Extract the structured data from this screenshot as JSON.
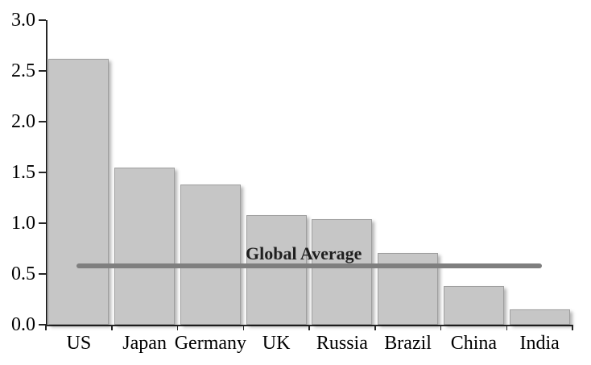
{
  "chart_data": {
    "type": "bar",
    "title": "",
    "xlabel": "",
    "ylabel": "",
    "categories": [
      "US",
      "Japan",
      "Germany",
      "UK",
      "Russia",
      "Brazil",
      "China",
      "India"
    ],
    "values": [
      2.62,
      1.55,
      1.38,
      1.08,
      1.04,
      0.71,
      0.38,
      0.15
    ],
    "ylim": [
      0.0,
      3.0
    ],
    "ytick_step": 0.5,
    "yticks": [
      "0.0",
      "0.5",
      "1.0",
      "1.5",
      "2.0",
      "2.5",
      "3.0"
    ],
    "grid": false,
    "legend": "none",
    "reference_line": {
      "label": "Global Average",
      "value": 0.58
    }
  },
  "colors": {
    "background": "#ffffff",
    "bar_fill": "#c6c6c6",
    "bar_border": "#9e9e9e",
    "axis": "#262626",
    "tick_label": "#000000",
    "reference_line": "#7f7f7f",
    "reference_label": "#1f1f1f"
  }
}
